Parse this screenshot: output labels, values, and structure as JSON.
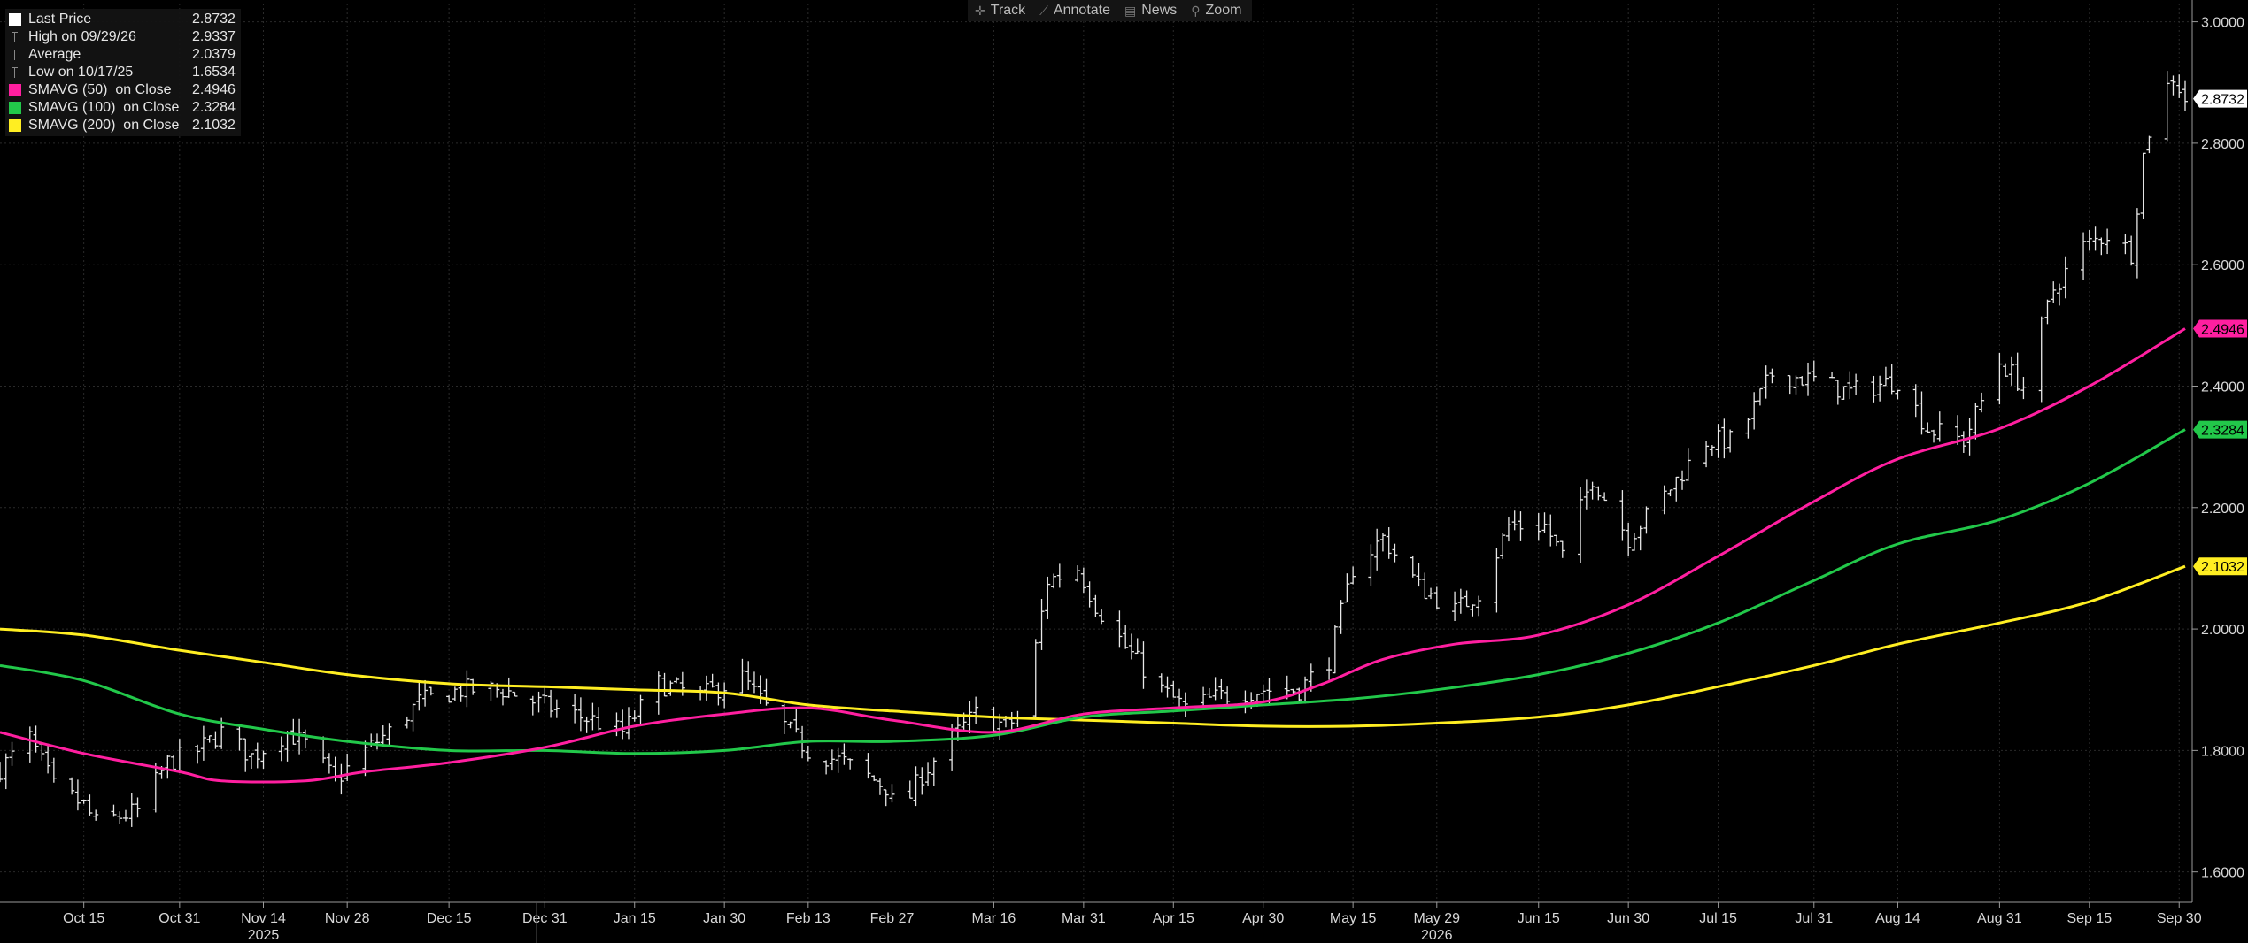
{
  "toolbar": {
    "items": [
      {
        "label": "Track",
        "icon": "crosshair-icon",
        "glyph": "✛"
      },
      {
        "label": "Annotate",
        "icon": "pencil-icon",
        "glyph": "⟋"
      },
      {
        "label": "News",
        "icon": "news-icon",
        "glyph": "▤"
      },
      {
        "label": "Zoom",
        "icon": "magnifier-icon",
        "glyph": "⚲"
      }
    ]
  },
  "legend": {
    "items": [
      {
        "label": "Last Price",
        "value": "2.8732",
        "color": "#ffffff",
        "symbol": "square"
      },
      {
        "label": "High on 09/29/26",
        "value": "2.9337",
        "color": "#888888",
        "symbol": "tick"
      },
      {
        "label": "Average",
        "value": "2.0379",
        "color": "#888888",
        "symbol": "tick"
      },
      {
        "label": "Low on 10/17/25",
        "value": "1.6534",
        "color": "#888888",
        "symbol": "tick"
      },
      {
        "label": "SMAVG (50)  on Close",
        "value": "2.4946",
        "color": "#ff1fa0",
        "symbol": "square"
      },
      {
        "label": "SMAVG (100)  on Close",
        "value": "2.3284",
        "color": "#22c84a",
        "symbol": "square"
      },
      {
        "label": "SMAVG (200)  on Close",
        "value": "2.1032",
        "color": "#ffee22",
        "symbol": "square"
      }
    ]
  },
  "chart_data": {
    "type": "ohlc",
    "ylim": [
      1.55,
      3.03
    ],
    "y_ticks": [
      1.6,
      1.8,
      2.0,
      2.2,
      2.4,
      2.6,
      2.8,
      3.0
    ],
    "y_tick_labels": [
      "1.6000",
      "1.8000",
      "2.0000",
      "2.2000",
      "2.4000",
      "2.6000",
      "2.8000",
      "3.0000"
    ],
    "x_start": "2025-10-01",
    "x_end": "2026-10-01",
    "x_ticks": [
      {
        "date": "2025-10-15",
        "label": "Oct 15"
      },
      {
        "date": "2025-10-31",
        "label": "Oct 31"
      },
      {
        "date": "2025-11-14",
        "label": "Nov 14"
      },
      {
        "date": "2025-11-28",
        "label": "Nov 28"
      },
      {
        "date": "2025-12-15",
        "label": "Dec 15"
      },
      {
        "date": "2025-12-31",
        "label": "Dec 31"
      },
      {
        "date": "2026-01-15",
        "label": "Jan 15"
      },
      {
        "date": "2026-01-30",
        "label": "Jan 30"
      },
      {
        "date": "2026-02-13",
        "label": "Feb 13"
      },
      {
        "date": "2026-02-27",
        "label": "Feb 27"
      },
      {
        "date": "2026-03-16",
        "label": "Mar 16"
      },
      {
        "date": "2026-03-31",
        "label": "Mar 31"
      },
      {
        "date": "2026-04-15",
        "label": "Apr 15"
      },
      {
        "date": "2026-04-30",
        "label": "Apr 30"
      },
      {
        "date": "2026-05-15",
        "label": "May 15"
      },
      {
        "date": "2026-05-29",
        "label": "May 29"
      },
      {
        "date": "2026-06-15",
        "label": "Jun 15"
      },
      {
        "date": "2026-06-30",
        "label": "Jun 30"
      },
      {
        "date": "2026-07-15",
        "label": "Jul 15"
      },
      {
        "date": "2026-07-31",
        "label": "Jul 31"
      },
      {
        "date": "2026-08-14",
        "label": "Aug 14"
      },
      {
        "date": "2026-08-31",
        "label": "Aug 31"
      },
      {
        "date": "2026-09-15",
        "label": "Sep 15"
      },
      {
        "date": "2026-09-30",
        "label": "Sep 30"
      }
    ],
    "year_labels": [
      {
        "date": "2025-11-14",
        "label": "2025"
      },
      {
        "date": "2026-05-29",
        "label": "2026"
      }
    ],
    "price_path": [
      {
        "date": "2025-10-01",
        "value": 1.77
      },
      {
        "date": "2025-10-06",
        "value": 1.82
      },
      {
        "date": "2025-10-10",
        "value": 1.74
      },
      {
        "date": "2025-10-15",
        "value": 1.71
      },
      {
        "date": "2025-10-17",
        "value": 1.68
      },
      {
        "date": "2025-10-24",
        "value": 1.7
      },
      {
        "date": "2025-10-29",
        "value": 1.78
      },
      {
        "date": "2025-11-03",
        "value": 1.8
      },
      {
        "date": "2025-11-07",
        "value": 1.83
      },
      {
        "date": "2025-11-12",
        "value": 1.79
      },
      {
        "date": "2025-11-18",
        "value": 1.83
      },
      {
        "date": "2025-11-21",
        "value": 1.81
      },
      {
        "date": "2025-11-26",
        "value": 1.75
      },
      {
        "date": "2025-12-01",
        "value": 1.8
      },
      {
        "date": "2025-12-05",
        "value": 1.83
      },
      {
        "date": "2025-12-10",
        "value": 1.88
      },
      {
        "date": "2025-12-17",
        "value": 1.9
      },
      {
        "date": "2025-12-24",
        "value": 1.9
      },
      {
        "date": "2026-01-01",
        "value": 1.87
      },
      {
        "date": "2026-01-08",
        "value": 1.85
      },
      {
        "date": "2026-01-13",
        "value": 1.83
      },
      {
        "date": "2026-01-19",
        "value": 1.91
      },
      {
        "date": "2026-01-26",
        "value": 1.89
      },
      {
        "date": "2026-02-02",
        "value": 1.92
      },
      {
        "date": "2026-02-06",
        "value": 1.87
      },
      {
        "date": "2026-02-13",
        "value": 1.8
      },
      {
        "date": "2026-02-19",
        "value": 1.78
      },
      {
        "date": "2026-02-26",
        "value": 1.74
      },
      {
        "date": "2026-02-28",
        "value": 1.69
      },
      {
        "date": "2026-03-04",
        "value": 1.76
      },
      {
        "date": "2026-03-09",
        "value": 1.82
      },
      {
        "date": "2026-03-13",
        "value": 1.86
      },
      {
        "date": "2026-03-18",
        "value": 1.84
      },
      {
        "date": "2026-03-21",
        "value": 1.86
      },
      {
        "date": "2026-03-25",
        "value": 2.08
      },
      {
        "date": "2026-03-30",
        "value": 2.1
      },
      {
        "date": "2026-04-02",
        "value": 2.04
      },
      {
        "date": "2026-04-07",
        "value": 1.97
      },
      {
        "date": "2026-04-13",
        "value": 1.9
      },
      {
        "date": "2026-04-17",
        "value": 1.87
      },
      {
        "date": "2026-04-23",
        "value": 1.89
      },
      {
        "date": "2026-04-30",
        "value": 1.9
      },
      {
        "date": "2026-05-06",
        "value": 1.9
      },
      {
        "date": "2026-05-11",
        "value": 1.95
      },
      {
        "date": "2026-05-15",
        "value": 2.1
      },
      {
        "date": "2026-05-20",
        "value": 2.15
      },
      {
        "date": "2026-05-26",
        "value": 2.07
      },
      {
        "date": "2026-06-01",
        "value": 2.03
      },
      {
        "date": "2026-06-05",
        "value": 2.06
      },
      {
        "date": "2026-06-10",
        "value": 2.17
      },
      {
        "date": "2026-06-16",
        "value": 2.17
      },
      {
        "date": "2026-06-19",
        "value": 2.12
      },
      {
        "date": "2026-06-24",
        "value": 2.25
      },
      {
        "date": "2026-06-30",
        "value": 2.15
      },
      {
        "date": "2026-07-06",
        "value": 2.22
      },
      {
        "date": "2026-07-13",
        "value": 2.31
      },
      {
        "date": "2026-07-18",
        "value": 2.31
      },
      {
        "date": "2026-07-24",
        "value": 2.42
      },
      {
        "date": "2026-07-31",
        "value": 2.41
      },
      {
        "date": "2026-08-06",
        "value": 2.39
      },
      {
        "date": "2026-08-14",
        "value": 2.41
      },
      {
        "date": "2026-08-19",
        "value": 2.33
      },
      {
        "date": "2026-08-25",
        "value": 2.31
      },
      {
        "date": "2026-08-31",
        "value": 2.44
      },
      {
        "date": "2026-09-04",
        "value": 2.4
      },
      {
        "date": "2026-09-09",
        "value": 2.56
      },
      {
        "date": "2026-09-14",
        "value": 2.63
      },
      {
        "date": "2026-09-18",
        "value": 2.65
      },
      {
        "date": "2026-09-22",
        "value": 2.62
      },
      {
        "date": "2026-09-24",
        "value": 2.78
      },
      {
        "date": "2026-09-26",
        "value": 2.86
      },
      {
        "date": "2026-09-29",
        "value": 2.91
      },
      {
        "date": "2026-10-01",
        "value": 2.8732
      }
    ],
    "series": [
      {
        "name": "SMAVG (50)  on Close",
        "color": "#ff1fa0",
        "last_label": "2.4946",
        "points": [
          {
            "date": "2025-10-01",
            "value": 1.83
          },
          {
            "date": "2025-10-15",
            "value": 1.795
          },
          {
            "date": "2025-10-31",
            "value": 1.765
          },
          {
            "date": "2025-11-07",
            "value": 1.75
          },
          {
            "date": "2025-11-21",
            "value": 1.75
          },
          {
            "date": "2025-12-01",
            "value": 1.765
          },
          {
            "date": "2025-12-15",
            "value": 1.78
          },
          {
            "date": "2025-12-31",
            "value": 1.805
          },
          {
            "date": "2026-01-15",
            "value": 1.84
          },
          {
            "date": "2026-01-30",
            "value": 1.86
          },
          {
            "date": "2026-02-13",
            "value": 1.87
          },
          {
            "date": "2026-02-27",
            "value": 1.85
          },
          {
            "date": "2026-03-16",
            "value": 1.83
          },
          {
            "date": "2026-03-31",
            "value": 1.86
          },
          {
            "date": "2026-04-15",
            "value": 1.87
          },
          {
            "date": "2026-04-30",
            "value": 1.88
          },
          {
            "date": "2026-05-10",
            "value": 1.91
          },
          {
            "date": "2026-05-20",
            "value": 1.95
          },
          {
            "date": "2026-06-01",
            "value": 1.975
          },
          {
            "date": "2026-06-15",
            "value": 1.99
          },
          {
            "date": "2026-06-30",
            "value": 2.04
          },
          {
            "date": "2026-07-15",
            "value": 2.12
          },
          {
            "date": "2026-07-31",
            "value": 2.21
          },
          {
            "date": "2026-08-14",
            "value": 2.28
          },
          {
            "date": "2026-08-31",
            "value": 2.33
          },
          {
            "date": "2026-09-15",
            "value": 2.4
          },
          {
            "date": "2026-10-01",
            "value": 2.4946
          }
        ]
      },
      {
        "name": "SMAVG (100)  on Close",
        "color": "#22c84a",
        "last_label": "2.3284",
        "points": [
          {
            "date": "2025-10-01",
            "value": 1.94
          },
          {
            "date": "2025-10-15",
            "value": 1.915
          },
          {
            "date": "2025-10-31",
            "value": 1.86
          },
          {
            "date": "2025-11-14",
            "value": 1.835
          },
          {
            "date": "2025-11-28",
            "value": 1.815
          },
          {
            "date": "2025-12-15",
            "value": 1.8
          },
          {
            "date": "2025-12-31",
            "value": 1.8
          },
          {
            "date": "2026-01-15",
            "value": 1.795
          },
          {
            "date": "2026-01-30",
            "value": 1.8
          },
          {
            "date": "2026-02-13",
            "value": 1.815
          },
          {
            "date": "2026-02-27",
            "value": 1.815
          },
          {
            "date": "2026-03-16",
            "value": 1.825
          },
          {
            "date": "2026-03-31",
            "value": 1.855
          },
          {
            "date": "2026-04-15",
            "value": 1.865
          },
          {
            "date": "2026-04-30",
            "value": 1.875
          },
          {
            "date": "2026-05-15",
            "value": 1.885
          },
          {
            "date": "2026-05-29",
            "value": 1.9
          },
          {
            "date": "2026-06-15",
            "value": 1.925
          },
          {
            "date": "2026-06-30",
            "value": 1.96
          },
          {
            "date": "2026-07-15",
            "value": 2.01
          },
          {
            "date": "2026-07-31",
            "value": 2.08
          },
          {
            "date": "2026-08-14",
            "value": 2.14
          },
          {
            "date": "2026-08-31",
            "value": 2.18
          },
          {
            "date": "2026-09-15",
            "value": 2.24
          },
          {
            "date": "2026-10-01",
            "value": 2.3284
          }
        ]
      },
      {
        "name": "SMAVG (200)  on Close",
        "color": "#ffee22",
        "last_label": "2.1032",
        "points": [
          {
            "date": "2025-10-01",
            "value": 2.0
          },
          {
            "date": "2025-10-15",
            "value": 1.99
          },
          {
            "date": "2025-10-31",
            "value": 1.965
          },
          {
            "date": "2025-11-14",
            "value": 1.945
          },
          {
            "date": "2025-11-28",
            "value": 1.925
          },
          {
            "date": "2025-12-15",
            "value": 1.91
          },
          {
            "date": "2025-12-31",
            "value": 1.905
          },
          {
            "date": "2026-01-15",
            "value": 1.9
          },
          {
            "date": "2026-01-30",
            "value": 1.895
          },
          {
            "date": "2026-02-13",
            "value": 1.875
          },
          {
            "date": "2026-02-27",
            "value": 1.865
          },
          {
            "date": "2026-03-16",
            "value": 1.855
          },
          {
            "date": "2026-03-31",
            "value": 1.85
          },
          {
            "date": "2026-04-15",
            "value": 1.845
          },
          {
            "date": "2026-04-30",
            "value": 1.84
          },
          {
            "date": "2026-05-15",
            "value": 1.84
          },
          {
            "date": "2026-05-29",
            "value": 1.845
          },
          {
            "date": "2026-06-15",
            "value": 1.855
          },
          {
            "date": "2026-06-30",
            "value": 1.875
          },
          {
            "date": "2026-07-15",
            "value": 1.905
          },
          {
            "date": "2026-07-31",
            "value": 1.94
          },
          {
            "date": "2026-08-14",
            "value": 1.975
          },
          {
            "date": "2026-08-31",
            "value": 2.01
          },
          {
            "date": "2026-09-15",
            "value": 2.045
          },
          {
            "date": "2026-10-01",
            "value": 2.1032
          }
        ]
      }
    ],
    "last_price": {
      "value": 2.8732,
      "label": "2.8732",
      "color": "#ffffff"
    },
    "grid": true
  }
}
